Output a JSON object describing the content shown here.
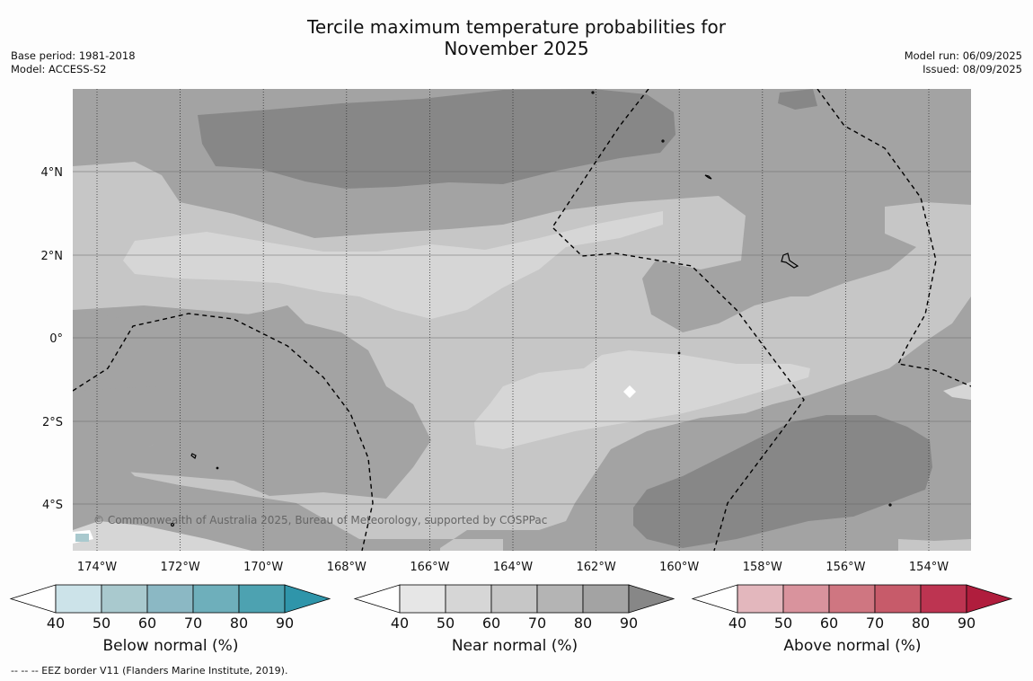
{
  "title_line1": "Tercile maximum temperature probabilities for",
  "title_line2": "November 2025",
  "meta_left": [
    "Base period: 1981-2018",
    "Model: ACCESS-S2"
  ],
  "meta_right": [
    "Model run: 06/09/2025",
    "Issued: 08/09/2025"
  ],
  "credit": "© Commonwealth of Australia 2025, Bureau of Meteorology, supported by COSPPac",
  "lat_labels": [
    "4°N",
    "2°N",
    "0°",
    "2°S",
    "4°S"
  ],
  "lon_labels": [
    "174°W",
    "172°W",
    "170°W",
    "168°W",
    "166°W",
    "164°W",
    "162°W",
    "160°W",
    "158°W",
    "156°W",
    "154°W"
  ],
  "colorbars": [
    {
      "label": "Below normal (%)",
      "ticks": [
        "40",
        "50",
        "60",
        "70",
        "80",
        "90"
      ],
      "colors": [
        "#cce3e9",
        "#a9c9ce",
        "#8bb8c4",
        "#6eafbb",
        "#4da2b1",
        "#2f95aa"
      ]
    },
    {
      "label": "Near normal (%)",
      "ticks": [
        "40",
        "50",
        "60",
        "70",
        "80",
        "90"
      ],
      "colors": [
        "#e6e6e6",
        "#d6d6d6",
        "#c6c6c6",
        "#b4b4b4",
        "#a3a3a3",
        "#878787"
      ]
    },
    {
      "label": "Above normal (%)",
      "ticks": [
        "40",
        "50",
        "60",
        "70",
        "80",
        "90"
      ],
      "colors": [
        "#e3b7bd",
        "#d9939d",
        "#cf7681",
        "#c75b6a",
        "#bd3451",
        "#b01d3d"
      ]
    }
  ],
  "footnote": "--  --  -- EEZ border V11 (Flanders Marine Institute, 2019).",
  "map_colors": {
    "land_outline": "#000000",
    "near_40": "#d6d6d6",
    "near_50": "#c6c6c6",
    "near_60": "#b4b4b4",
    "near_70": "#a3a3a3",
    "near_80": "#878787",
    "below_40": "#a9c9ce"
  }
}
